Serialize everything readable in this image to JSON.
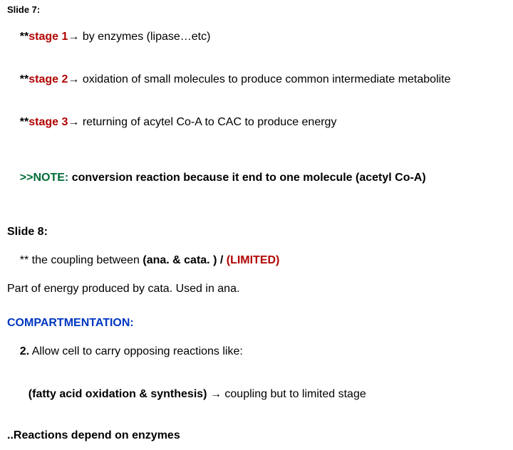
{
  "colors": {
    "red": "#b10000",
    "green": "#006c35",
    "blue": "#0036c1",
    "black": "#000000",
    "background": "#ffffff"
  },
  "slide7": {
    "heading": "Slide 7:",
    "stage1_prefix": "**",
    "stage1_label": "stage 1",
    "stage1_arrow": "→",
    "stage1_text": " by enzymes (lipase…etc)",
    "stage2_prefix": "**",
    "stage2_label": "stage 2",
    "stage2_arrow": "→",
    "stage2_text": " oxidation of small molecules to produce common intermediate metabolite",
    "stage3_prefix": "**",
    "stage3_label": "stage 3",
    "stage3_arrow": "→",
    "stage3_text": " returning of acytel Co-A to CAC to produce energy",
    "note_prefix": ">>NOTE:",
    "note_text": " conversion reaction because it end to one molecule (acetyl Co-A)"
  },
  "slide8": {
    "heading": "Slide 8:",
    "l1_pre": "** the coupling between ",
    "l1_paren": "(ana. & cata. )",
    "l1_slash": " / ",
    "l1_lim": "(LIMITED)",
    "l2": "Part of energy produced by cata. Used in ana."
  },
  "compartmentation": {
    "heading": "COMPARTMENTATION:",
    "item_num": "2.",
    "item_text": " Allow cell to carry opposing reactions like:",
    "sub_paren": "(fatty acid oxidation & synthesis)",
    "sub_arrow": " → ",
    "sub_text": "coupling but to limited stage",
    "footer": "..Reactions depend on enzymes"
  },
  "typography": {
    "heading_fontsize_small": 13,
    "body_fontsize": 16,
    "font_family": "Arial"
  }
}
